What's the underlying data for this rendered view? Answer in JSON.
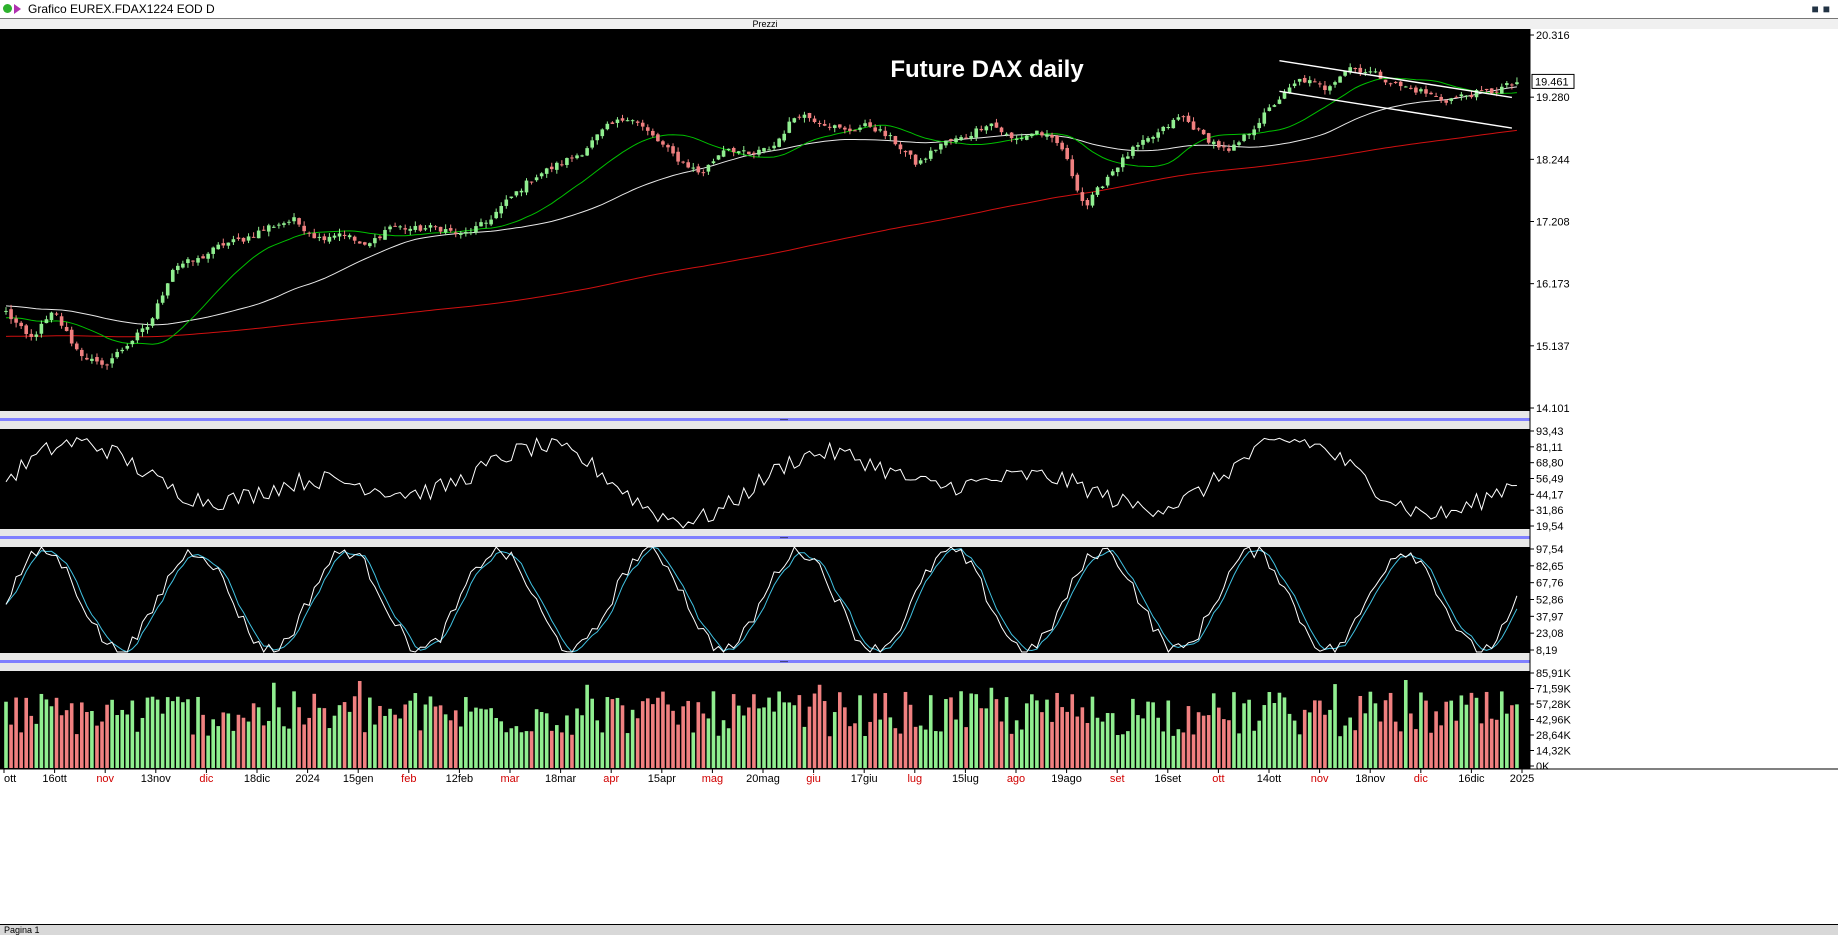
{
  "window": {
    "title": "Grafico EUREX.FDAX1224 EOD D",
    "status_text": "Pagina 1"
  },
  "colors": {
    "up": "#90ee90",
    "down": "#f08080",
    "sma_fast": "#00c000",
    "sma_mid": "#e8e8e8",
    "sma_slow": "#d01010",
    "osc": "#ffffff",
    "stoch_k": "#ffffff",
    "stoch_d": "#40c0e0"
  },
  "chart_data": [
    {
      "type": "candlestick",
      "panel_label": "Prezzi",
      "title": "Future DAX daily",
      "last_value_label": "19.461",
      "y_ticks": [
        "20.316",
        "19.280",
        "18.244",
        "17.208",
        "16.173",
        "15.137",
        "14.101"
      ],
      "ylim": [
        14101,
        20316
      ],
      "x_ticks": [
        "ott",
        "16ott",
        "nov",
        "13nov",
        "dic",
        "18dic",
        "2024",
        "15gen",
        "feb",
        "12feb",
        "mar",
        "18mar",
        "apr",
        "15apr",
        "mag",
        "20mag",
        "giu",
        "17giu",
        "lug",
        "15lug",
        "ago",
        "19ago",
        "set",
        "16set",
        "ott",
        "14ott",
        "nov",
        "18nov",
        "dic",
        "16dic",
        "2025"
      ],
      "x_tick_red": [
        false,
        false,
        true,
        false,
        true,
        false,
        false,
        false,
        true,
        false,
        true,
        false,
        true,
        false,
        true,
        false,
        true,
        false,
        true,
        false,
        true,
        false,
        true,
        false,
        true,
        false,
        true,
        false,
        true,
        false,
        false
      ],
      "price_anchors": [
        15700,
        15250,
        15700,
        15050,
        14800,
        15150,
        15500,
        16450,
        16550,
        16800,
        16900,
        17100,
        17200,
        16900,
        17000,
        16750,
        17100,
        17050,
        17080,
        16950,
        17150,
        17550,
        17900,
        18100,
        18300,
        18700,
        18900,
        18550,
        18200,
        17950,
        18400,
        18250,
        18400,
        18950,
        18800,
        18650,
        18750,
        18500,
        18100,
        18450,
        18550,
        18800,
        18500,
        18650,
        18400,
        17400,
        17950,
        18350,
        18600,
        18900,
        18550,
        18300,
        18700,
        19150,
        19500,
        19350,
        19700,
        19600,
        19400,
        19300,
        19150,
        19250,
        19300,
        19450
      ],
      "moving_average_periods": [
        20,
        50,
        200
      ],
      "trendline_upper": [
        19800,
        19200
      ],
      "trendline_lower": [
        19300,
        18700
      ]
    },
    {
      "type": "line",
      "y_ticks": [
        "93,43",
        "81,11",
        "68,80",
        "56,49",
        "44,17",
        "31,86",
        "19,54"
      ],
      "ylim": [
        19.54,
        93.43
      ]
    },
    {
      "type": "line",
      "y_ticks": [
        "97,54",
        "82,65",
        "67,76",
        "52,86",
        "37,97",
        "23,08",
        "8,19"
      ],
      "ylim": [
        8.19,
        97.54
      ]
    },
    {
      "type": "bar",
      "y_ticks": [
        "85,91K",
        "71,59K",
        "57,28K",
        "42,96K",
        "28,64K",
        "14,32K",
        "0K"
      ],
      "ylim": [
        0,
        85910
      ]
    }
  ]
}
